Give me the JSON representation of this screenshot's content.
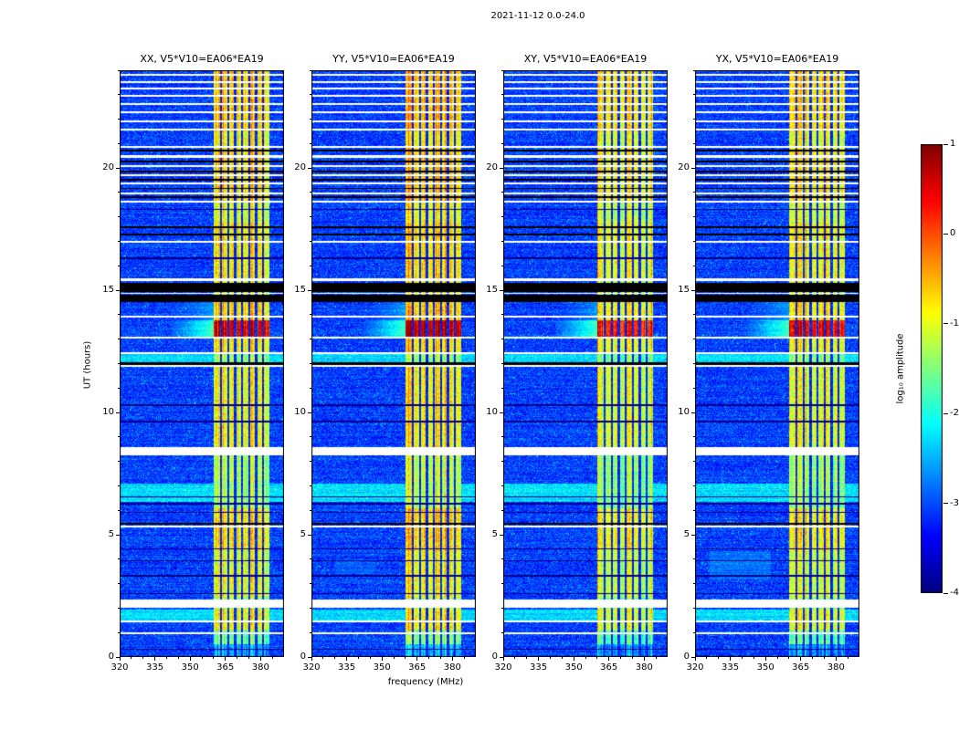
{
  "chart_data": {
    "type": "heatmap",
    "title": "2021-11-12 0.0-24.0",
    "xlabel": "frequency (MHz)",
    "ylabel": "UT (hours)",
    "x_range": [
      320,
      390
    ],
    "y_range": [
      0,
      24
    ],
    "x_ticks": [
      320,
      335,
      350,
      365,
      380
    ],
    "x_minor_step": 5,
    "y_ticks": [
      0,
      5,
      10,
      15,
      20
    ],
    "y_minor_step": 1,
    "colorbar": {
      "label": "log₁₀ amplitude",
      "ticks": [
        1,
        0,
        -1,
        -2,
        -3,
        -4
      ],
      "vmin": -4,
      "vmax": 1,
      "colormap": "jet"
    },
    "panels": [
      {
        "key": "XX",
        "title": "XX, V5*V10=EA06*EA19",
        "burst_value": 0.45,
        "band_offset": 0.0
      },
      {
        "key": "YY",
        "title": "YY, V5*V10=EA06*EA19",
        "burst_value": 0.6,
        "band_offset": 0.08
      },
      {
        "key": "XY",
        "title": "XY, V5*V10=EA06*EA19",
        "burst_value": 0.2,
        "band_offset": -0.1
      },
      {
        "key": "YX",
        "title": "YX, V5*V10=EA06*EA19",
        "burst_value": 0.4,
        "band_offset": 0.0
      }
    ],
    "features": {
      "background_level": -3.45,
      "rfi_band": {
        "f_start": 360,
        "f_end": 383.5,
        "notch_start": 363,
        "notch_spacing": 3
      },
      "band_profile": [
        [
          0,
          0.55,
          -2.6
        ],
        [
          0.55,
          1.1,
          -1.7
        ],
        [
          1.1,
          2.0,
          -1.0
        ],
        [
          2.0,
          2.45,
          -1.5
        ],
        [
          2.45,
          4.4,
          -1.1
        ],
        [
          4.4,
          6.1,
          -0.85
        ],
        [
          6.1,
          7.2,
          -1.4
        ],
        [
          7.2,
          8.62,
          -1.35
        ],
        [
          8.62,
          12.0,
          -1.0
        ],
        [
          12.0,
          12.5,
          -1.5
        ],
        [
          12.5,
          13.11,
          -0.9
        ],
        [
          13.11,
          13.8,
          0.45
        ],
        [
          13.8,
          14.55,
          -0.8
        ],
        [
          14.55,
          15.4,
          -1.1
        ],
        [
          15.4,
          17.8,
          -0.9
        ],
        [
          17.8,
          18.6,
          -1.1
        ],
        [
          18.6,
          20.8,
          -0.8
        ],
        [
          20.8,
          21.5,
          -1.0
        ],
        [
          21.5,
          24.01,
          -0.72
        ]
      ],
      "white_rows": [
        [
          23.78,
          23.87
        ],
        [
          23.5,
          23.58
        ],
        [
          23.22,
          23.3
        ],
        [
          22.94,
          23.02
        ],
        [
          22.6,
          22.68
        ],
        [
          22.25,
          22.33
        ],
        [
          21.9,
          21.98
        ],
        [
          21.55,
          21.63
        ],
        [
          20.85,
          20.93
        ],
        [
          20.45,
          20.54
        ],
        [
          20.05,
          20.13
        ],
        [
          19.7,
          19.78
        ],
        [
          19.35,
          19.43
        ],
        [
          18.95,
          19.03
        ],
        [
          18.6,
          18.68
        ],
        [
          16.95,
          17.04
        ],
        [
          15.4,
          15.5
        ],
        [
          14.86,
          14.93
        ],
        [
          13.9,
          13.99
        ],
        [
          13.03,
          13.11
        ],
        [
          12.42,
          12.5
        ],
        [
          11.87,
          11.95
        ],
        [
          8.28,
          8.62
        ],
        [
          5.33,
          5.4
        ],
        [
          2.05,
          2.38
        ],
        [
          1.42,
          1.5
        ],
        [
          0.95,
          1.03
        ]
      ],
      "black_rows": [
        [
          20.7,
          20.78
        ],
        [
          20.25,
          20.33
        ],
        [
          19.85,
          19.93
        ],
        [
          19.5,
          19.58
        ],
        [
          19.15,
          19.22
        ],
        [
          18.78,
          18.85
        ],
        [
          17.55,
          17.63
        ],
        [
          17.25,
          17.33
        ],
        [
          14.95,
          15.32
        ],
        [
          14.55,
          14.82
        ],
        [
          11.97,
          12.07
        ],
        [
          5.42,
          5.5
        ]
      ],
      "cyan_rows": [
        [
          12.08,
          12.4
        ],
        [
          6.35,
          7.1
        ],
        [
          1.5,
          1.97
        ]
      ],
      "dark_rows": [
        [
          18.3,
          18.35
        ],
        [
          16.3,
          16.35
        ],
        [
          10.3,
          10.36
        ],
        [
          9.62,
          9.68
        ],
        [
          6.55,
          6.6
        ],
        [
          6.27,
          6.32
        ],
        [
          5.92,
          5.97
        ],
        [
          4.42,
          4.47
        ],
        [
          3.92,
          3.97
        ],
        [
          3.32,
          3.37
        ],
        [
          2.6,
          2.64
        ],
        [
          0.32,
          0.37
        ]
      ],
      "burst": {
        "t_start": 13.11,
        "t_end": 13.8,
        "t_fade_end": 14.55,
        "f_spill_start": 342
      },
      "cyan_patches": [
        {
          "t": [
            3.2,
            4.35
          ],
          "f": [
            326,
            352
          ],
          "value": -2.85,
          "panels": [
            3
          ]
        },
        {
          "t": [
            3.4,
            4.0
          ],
          "f": [
            330,
            347
          ],
          "value": -3.0,
          "panels": [
            1
          ]
        }
      ]
    }
  }
}
